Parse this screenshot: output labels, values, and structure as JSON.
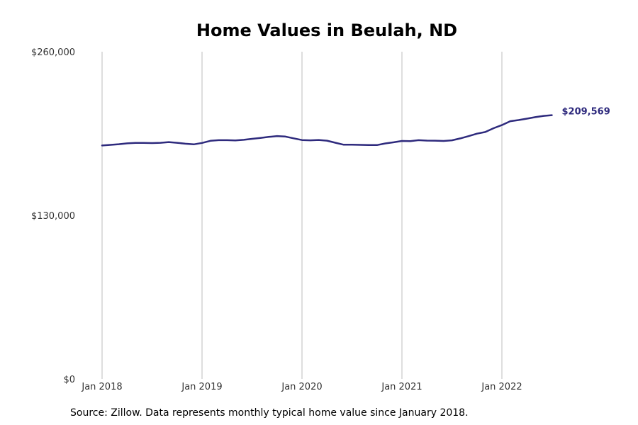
{
  "chart_data": {
    "type": "line",
    "title": "Home Values in Beulah, ND",
    "xlabel": "",
    "ylabel": "",
    "ylim": [
      0,
      260000
    ],
    "yticks": [
      {
        "value": 0,
        "label": "$0"
      },
      {
        "value": 130000,
        "label": "$130,000"
      },
      {
        "value": 260000,
        "label": "$260,000"
      }
    ],
    "xticks": [
      {
        "value": "2018-01",
        "label": "Jan 2018"
      },
      {
        "value": "2019-01",
        "label": "Jan 2019"
      },
      {
        "value": "2020-01",
        "label": "Jan 2020"
      },
      {
        "value": "2021-01",
        "label": "Jan 2021"
      },
      {
        "value": "2022-01",
        "label": "Jan 2022"
      }
    ],
    "grid": "vertical",
    "series": [
      {
        "color": "#2e2a7d",
        "end_label": "$209,569",
        "x": [
          "2018-01",
          "2018-02",
          "2018-03",
          "2018-04",
          "2018-05",
          "2018-06",
          "2018-07",
          "2018-08",
          "2018-09",
          "2018-10",
          "2018-11",
          "2018-12",
          "2019-01",
          "2019-02",
          "2019-03",
          "2019-04",
          "2019-05",
          "2019-06",
          "2019-07",
          "2019-08",
          "2019-09",
          "2019-10",
          "2019-11",
          "2019-12",
          "2020-01",
          "2020-02",
          "2020-03",
          "2020-04",
          "2020-05",
          "2020-06",
          "2020-07",
          "2020-08",
          "2020-09",
          "2020-10",
          "2020-11",
          "2020-12",
          "2021-01",
          "2021-02",
          "2021-03",
          "2021-04",
          "2021-05",
          "2021-06",
          "2021-07",
          "2021-08",
          "2021-09",
          "2021-10",
          "2021-11",
          "2021-12",
          "2022-01",
          "2022-02",
          "2022-03",
          "2022-04",
          "2022-05",
          "2022-06",
          "2022-07"
        ],
        "values": [
          185500,
          186000,
          186500,
          187200,
          187500,
          187500,
          187400,
          187600,
          188200,
          187600,
          186900,
          186400,
          187500,
          189200,
          189700,
          189700,
          189500,
          190000,
          190800,
          191500,
          192300,
          193000,
          192600,
          191200,
          189800,
          189600,
          189900,
          189300,
          187700,
          186100,
          186100,
          186000,
          185900,
          185800,
          187100,
          188000,
          189100,
          188900,
          189700,
          189400,
          189300,
          189100,
          189600,
          191100,
          192900,
          194900,
          196200,
          199200,
          201700,
          204800,
          205700,
          206800,
          208000,
          209000,
          209569
        ]
      }
    ]
  },
  "source_note": "Source: Zillow. Data represents monthly typical home value since January 2018."
}
